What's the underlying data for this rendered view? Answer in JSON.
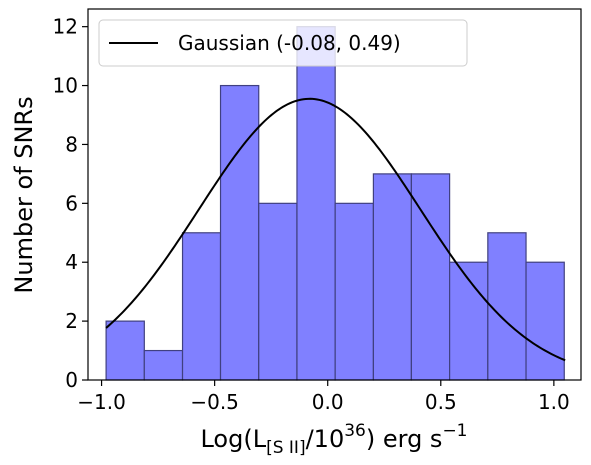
{
  "chart_data": {
    "type": "bar",
    "xlabel": {
      "prefix": "Log(L",
      "subscript": "[S II]",
      "mid": "/10",
      "superscript": "36",
      "suffix": ") erg s",
      "unit_exponent": "−1"
    },
    "ylabel": "Number of SNRs",
    "xlim": [
      -1.06,
      1.12
    ],
    "ylim": [
      0,
      12.6
    ],
    "xticks": [
      -1.0,
      -0.5,
      0.0,
      0.5,
      1.0
    ],
    "xtick_labels": [
      "−1.0",
      "−0.5",
      "0.0",
      "0.5",
      "1.0"
    ],
    "yticks": [
      0,
      2,
      4,
      6,
      8,
      10,
      12
    ],
    "ytick_labels": [
      "0",
      "2",
      "4",
      "6",
      "8",
      "10",
      "12"
    ],
    "bin_edges": [
      -0.98,
      -0.811,
      -0.642,
      -0.474,
      -0.305,
      -0.136,
      0.033,
      0.202,
      0.37,
      0.539,
      0.708,
      0.877,
      1.046
    ],
    "counts": [
      2,
      1,
      5,
      10,
      6,
      12,
      6,
      7,
      7,
      4,
      5,
      4
    ],
    "bar_color": "#8080ff",
    "bar_edge_color": "#404080",
    "series": [
      {
        "name": "Gaussian (-0.08, 0.49)",
        "type": "line",
        "color": "#000000",
        "mean": -0.08,
        "sigma": 0.49,
        "peak": 9.55,
        "x_range": [
          -0.98,
          1.05
        ]
      }
    ],
    "legend": {
      "position": "top-left",
      "label": "Gaussian (-0.08, 0.49)"
    },
    "grid": false
  }
}
